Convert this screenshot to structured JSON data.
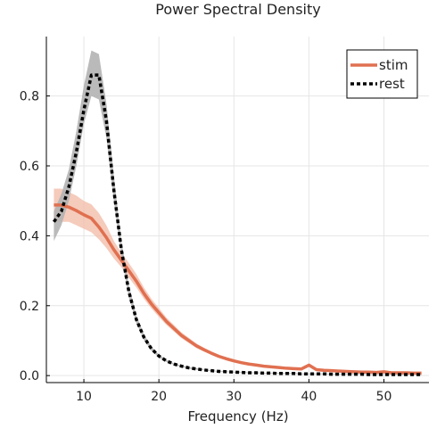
{
  "chart_data": {
    "type": "line",
    "title": "Power Spectral Density",
    "xlabel": "Frequency (Hz)",
    "ylabel": "",
    "xlim": [
      5,
      56
    ],
    "ylim": [
      -0.02,
      0.97
    ],
    "xticks": [
      10,
      20,
      30,
      40,
      50
    ],
    "yticks": [
      0.0,
      0.2,
      0.4,
      0.6,
      0.8
    ],
    "ytick_labels": [
      "0.0",
      "0.2",
      "0.4",
      "0.6",
      "0.8"
    ],
    "grid": true,
    "legend_position": "top-right",
    "x": [
      6,
      7,
      8,
      9,
      10,
      11,
      12,
      13,
      14,
      15,
      16,
      17,
      18,
      19,
      20,
      21,
      22,
      23,
      24,
      25,
      26,
      27,
      28,
      29,
      30,
      31,
      32,
      33,
      34,
      35,
      36,
      37,
      38,
      39,
      40,
      41,
      42,
      43,
      44,
      45,
      46,
      47,
      48,
      49,
      50,
      51,
      52,
      53,
      54,
      55
    ],
    "series": [
      {
        "name": "stim",
        "color": "#e07050",
        "band_color": "#f2b9a6",
        "style": "solid",
        "values": [
          0.488,
          0.488,
          0.482,
          0.472,
          0.46,
          0.45,
          0.425,
          0.395,
          0.36,
          0.33,
          0.3,
          0.27,
          0.235,
          0.205,
          0.18,
          0.155,
          0.135,
          0.115,
          0.1,
          0.085,
          0.074,
          0.064,
          0.055,
          0.048,
          0.042,
          0.037,
          0.033,
          0.03,
          0.027,
          0.025,
          0.023,
          0.021,
          0.02,
          0.019,
          0.03,
          0.017,
          0.015,
          0.014,
          0.013,
          0.012,
          0.011,
          0.01,
          0.01,
          0.009,
          0.011,
          0.008,
          0.008,
          0.008,
          0.007,
          0.007
        ],
        "lower": [
          0.44,
          0.44,
          0.44,
          0.43,
          0.42,
          0.41,
          0.39,
          0.365,
          0.335,
          0.31,
          0.28,
          0.252,
          0.22,
          0.192,
          0.168,
          0.145,
          0.126,
          0.107,
          0.093,
          0.079,
          0.069,
          0.06,
          0.051,
          0.045,
          0.039,
          0.034,
          0.031,
          0.028,
          0.025,
          0.023,
          0.021,
          0.019,
          0.018,
          0.017,
          0.026,
          0.015,
          0.013,
          0.012,
          0.011,
          0.01,
          0.009,
          0.008,
          0.008,
          0.007,
          0.009,
          0.006,
          0.006,
          0.006,
          0.005,
          0.005
        ],
        "upper": [
          0.535,
          0.535,
          0.525,
          0.515,
          0.5,
          0.49,
          0.465,
          0.43,
          0.385,
          0.352,
          0.322,
          0.29,
          0.252,
          0.22,
          0.193,
          0.166,
          0.145,
          0.124,
          0.108,
          0.092,
          0.08,
          0.069,
          0.059,
          0.052,
          0.046,
          0.04,
          0.036,
          0.033,
          0.03,
          0.027,
          0.025,
          0.023,
          0.022,
          0.021,
          0.034,
          0.019,
          0.017,
          0.016,
          0.015,
          0.014,
          0.013,
          0.012,
          0.012,
          0.011,
          0.013,
          0.01,
          0.01,
          0.01,
          0.009,
          0.009
        ]
      },
      {
        "name": "rest",
        "color": "#000000",
        "band_color": "#b3b3b3",
        "style": "dashed",
        "values": [
          0.44,
          0.47,
          0.54,
          0.64,
          0.76,
          0.86,
          0.86,
          0.73,
          0.53,
          0.36,
          0.24,
          0.16,
          0.11,
          0.077,
          0.056,
          0.042,
          0.033,
          0.027,
          0.022,
          0.019,
          0.016,
          0.014,
          0.012,
          0.011,
          0.01,
          0.009,
          0.008,
          0.008,
          0.007,
          0.007,
          0.006,
          0.006,
          0.006,
          0.005,
          0.005,
          0.005,
          0.005,
          0.004,
          0.004,
          0.004,
          0.004,
          0.004,
          0.003,
          0.003,
          0.003,
          0.003,
          0.003,
          0.003,
          0.003,
          0.003
        ],
        "lower": [
          0.385,
          0.43,
          0.5,
          0.6,
          0.72,
          0.8,
          0.79,
          0.68,
          0.5,
          0.34,
          0.225,
          0.15,
          0.102,
          0.071,
          0.052,
          0.039,
          0.031,
          0.025,
          0.02,
          0.017,
          0.015,
          0.013,
          0.011,
          0.01,
          0.009,
          0.008,
          0.007,
          0.007,
          0.006,
          0.006,
          0.005,
          0.005,
          0.005,
          0.004,
          0.004,
          0.004,
          0.004,
          0.003,
          0.003,
          0.003,
          0.003,
          0.003,
          0.002,
          0.002,
          0.002,
          0.002,
          0.002,
          0.002,
          0.002,
          0.002
        ],
        "upper": [
          0.47,
          0.52,
          0.59,
          0.7,
          0.83,
          0.93,
          0.92,
          0.78,
          0.57,
          0.385,
          0.258,
          0.172,
          0.118,
          0.083,
          0.06,
          0.045,
          0.035,
          0.029,
          0.024,
          0.021,
          0.017,
          0.015,
          0.013,
          0.012,
          0.011,
          0.01,
          0.009,
          0.009,
          0.008,
          0.008,
          0.007,
          0.007,
          0.007,
          0.006,
          0.006,
          0.006,
          0.006,
          0.005,
          0.005,
          0.005,
          0.005,
          0.005,
          0.004,
          0.004,
          0.004,
          0.004,
          0.004,
          0.004,
          0.004,
          0.004
        ]
      }
    ]
  }
}
